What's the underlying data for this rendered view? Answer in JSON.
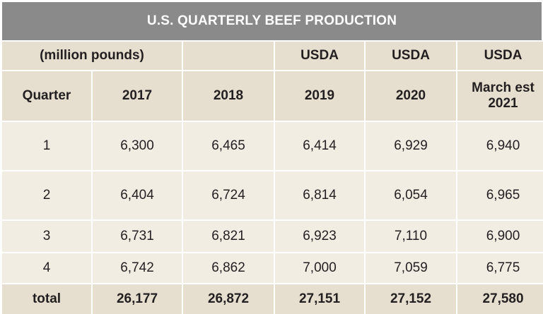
{
  "title": "U.S. QUARTERLY BEEF PRODUCTION",
  "header_top": [
    "(million pounds)",
    "",
    "USDA",
    "USDA",
    "USDA"
  ],
  "header": [
    "Quarter",
    "2017",
    "2018",
    "2019",
    "2020",
    "March est\n2021"
  ],
  "rows": [
    [
      "1",
      "6,300",
      "6,465",
      "6,414",
      "6,929",
      "6,940"
    ],
    [
      "2",
      "6,404",
      "6,724",
      "6,814",
      "6,054",
      "6,965"
    ],
    [
      "3",
      "6,731",
      "6,821",
      "6,923",
      "7,110",
      "6,900"
    ],
    [
      "4",
      "6,742",
      "6,862",
      "7,000",
      "7,059",
      "6,775"
    ]
  ],
  "total": [
    "total",
    "26,177",
    "26,872",
    "27,151",
    "27,152",
    "27,580"
  ],
  "colors": {
    "title_bg": "#8a8a8a",
    "header_bg": "#e6dfcf",
    "row_bg": "#f1ede3"
  }
}
